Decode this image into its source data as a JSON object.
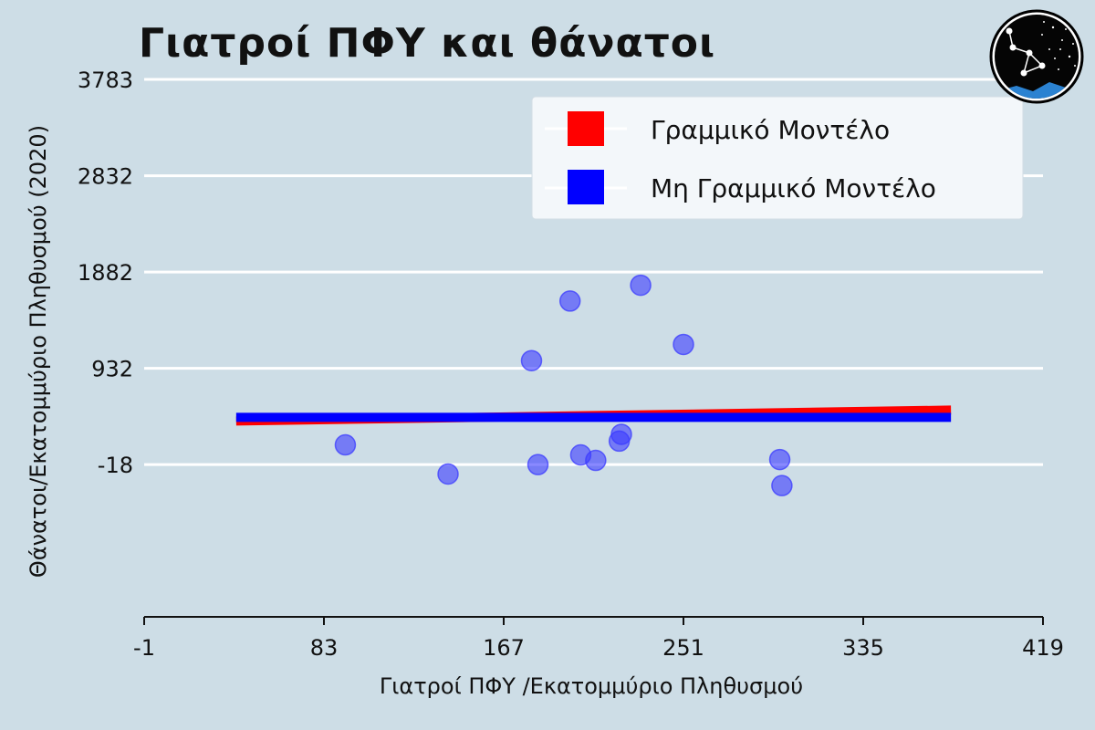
{
  "chart_data": {
    "type": "scatter",
    "title": "Γιατροί ΠΦΥ και θάνατοι",
    "xlabel": "Γιατροί ΠΦΥ /Εκατομμύριο Πληθυσμού",
    "ylabel": "Θάνατοι/Εκατομμύριο Πληθυσμού (2020)",
    "xlim": [
      -1,
      419
    ],
    "ylim": [
      -1520,
      3783
    ],
    "x_ticks": [
      "-1",
      "83",
      "167",
      "251",
      "335",
      "419"
    ],
    "y_ticks": [
      "-18",
      "932",
      "1882",
      "2832",
      "3783"
    ],
    "grid": "horizontal",
    "legend_position": "top-right",
    "points": [
      {
        "x": 93,
        "y": 177
      },
      {
        "x": 141,
        "y": -111
      },
      {
        "x": 180,
        "y": 1008
      },
      {
        "x": 183,
        "y": -18
      },
      {
        "x": 198,
        "y": 1596
      },
      {
        "x": 203,
        "y": 78
      },
      {
        "x": 210,
        "y": 24
      },
      {
        "x": 221,
        "y": 214
      },
      {
        "x": 222,
        "y": 281
      },
      {
        "x": 231,
        "y": 1752
      },
      {
        "x": 251,
        "y": 1168
      },
      {
        "x": 296,
        "y": 32
      },
      {
        "x": 297,
        "y": -225
      }
    ],
    "series": [
      {
        "name": "Γραμμικό Μοντέλο",
        "color": "#ff0000",
        "x": [
          42,
          376
        ],
        "y": [
          412,
          520
        ]
      },
      {
        "name": "Μη Γραμμικό Μοντέλο",
        "color": "#0000ff",
        "x": [
          42,
          376
        ],
        "y": [
          448,
          448
        ]
      }
    ],
    "point_color": "#3b3bff"
  }
}
